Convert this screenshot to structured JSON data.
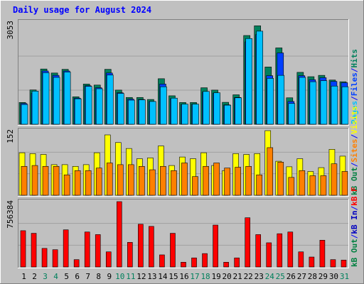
{
  "colors": {
    "background": "#c0c0c0",
    "panel": "#c0c0c0",
    "title": "#0000ff",
    "hits": "#00805c",
    "files": "#0040ff",
    "pages": "#00c0ff",
    "visits": "#ffff00",
    "sites": "#ff8000",
    "kbin": "#0000c0",
    "kbout": "#008040",
    "kbf": "#ff0000",
    "kbf_bar": "#ff0000",
    "weekend_label": "#00805c",
    "weekday_label": "#000000",
    "divider": "#0000ff"
  },
  "chart_data": {
    "type": "bar",
    "title": "Daily usage for August 2024",
    "categories": [
      "1",
      "2",
      "3",
      "4",
      "5",
      "6",
      "7",
      "8",
      "9",
      "10",
      "11",
      "12",
      "13",
      "14",
      "15",
      "16",
      "17",
      "18",
      "19",
      "20",
      "21",
      "22",
      "23",
      "24",
      "25",
      "26",
      "27",
      "28",
      "29",
      "30",
      "31"
    ],
    "weekend_days": [
      3,
      4,
      10,
      11,
      17,
      18,
      24,
      25,
      31
    ],
    "panels": [
      {
        "id": "traffic",
        "ymax_label": "3053",
        "ymax": 3053,
        "legend": [
          {
            "text": "Hits",
            "color_key": "hits"
          },
          {
            "text": "/",
            "color_key": "divider"
          },
          {
            "text": "Files",
            "color_key": "files"
          },
          {
            "text": "/",
            "color_key": "divider"
          },
          {
            "text": "Pages",
            "color_key": "pages"
          }
        ],
        "series": [
          {
            "name": "Hits",
            "color_key": "hits",
            "values": [
              650,
              1025,
              1650,
              1530,
              1640,
              820,
              1200,
              1170,
              1640,
              1020,
              800,
              800,
              740,
              1360,
              850,
              650,
              650,
              1090,
              1020,
              655,
              880,
              2650,
              2940,
              1710,
              2280,
              790,
              1550,
              1420,
              1460,
              1320,
              1270
            ]
          },
          {
            "name": "Files",
            "color_key": "files",
            "values": [
              620,
              920,
              1590,
              1460,
              1590,
              780,
              1150,
              1090,
              1530,
              940,
              750,
              740,
              680,
              1200,
              760,
              590,
              600,
              960,
              930,
              580,
              800,
              2460,
              2680,
              1450,
              2130,
              680,
              1450,
              1330,
              1390,
              1280,
              1240
            ]
          },
          {
            "name": "Pages",
            "color_key": "pages",
            "values": [
              590,
              990,
              1540,
              1400,
              1560,
              760,
              1130,
              1060,
              1470,
              920,
              720,
              730,
              680,
              1120,
              780,
              600,
              600,
              980,
              940,
              570,
              790,
              2560,
              2780,
              1370,
              1460,
              620,
              1400,
              1270,
              1300,
              1140,
              1120
            ]
          }
        ]
      },
      {
        "id": "visitors",
        "ymax_label": "152",
        "ymax": 152,
        "legend": [
          {
            "text": "Visits",
            "color_key": "visits"
          },
          {
            "text": "/",
            "color_key": "divider"
          },
          {
            "text": "Sites",
            "color_key": "sites"
          },
          {
            "text": "/",
            "color_key": "divider"
          },
          {
            "text": "kB Out",
            "color_key": "kbout"
          }
        ],
        "series": [
          {
            "name": "Visits",
            "color_key": "visits",
            "values": [
              100,
              98,
              96,
              72,
              72,
              68,
              72,
              100,
              142,
              124,
              110,
              86,
              88,
              116,
              70,
              90,
              86,
              100,
              70,
              58,
              98,
              96,
              98,
              152,
              80,
              67,
              86,
              56,
              65,
              108,
              92
            ]
          },
          {
            "name": "Sites",
            "color_key": "sites",
            "values": [
              68,
              70,
              68,
              68,
              48,
              58,
              58,
              64,
              76,
              72,
              72,
              68,
              60,
              68,
              58,
              76,
              44,
              68,
              76,
              64,
              66,
              68,
              48,
              112,
              78,
              42,
              58,
              46,
              46,
              74,
              56
            ]
          }
        ]
      },
      {
        "id": "kbytes",
        "ymax_label": "756384",
        "ymax": 756384,
        "legend": [
          {
            "text": "kB F",
            "color_key": "kbf"
          },
          {
            "text": "/",
            "color_key": "divider"
          },
          {
            "text": "kB In",
            "color_key": "kbin"
          },
          {
            "text": "/",
            "color_key": "divider"
          },
          {
            "text": "kB Out",
            "color_key": "kbout"
          }
        ],
        "series": [
          {
            "name": "kB F",
            "color_key": "kbf_bar",
            "values": [
              420000,
              390000,
              215000,
              200000,
              430000,
              85000,
              405000,
              375000,
              175000,
              756384,
              285000,
              495000,
              470000,
              140000,
              390000,
              55000,
              105000,
              155000,
              485000,
              55000,
              105000,
              570000,
              375000,
              280000,
              385000,
              405000,
              175000,
              115000,
              310000,
              85000,
              80000
            ]
          }
        ]
      }
    ]
  }
}
